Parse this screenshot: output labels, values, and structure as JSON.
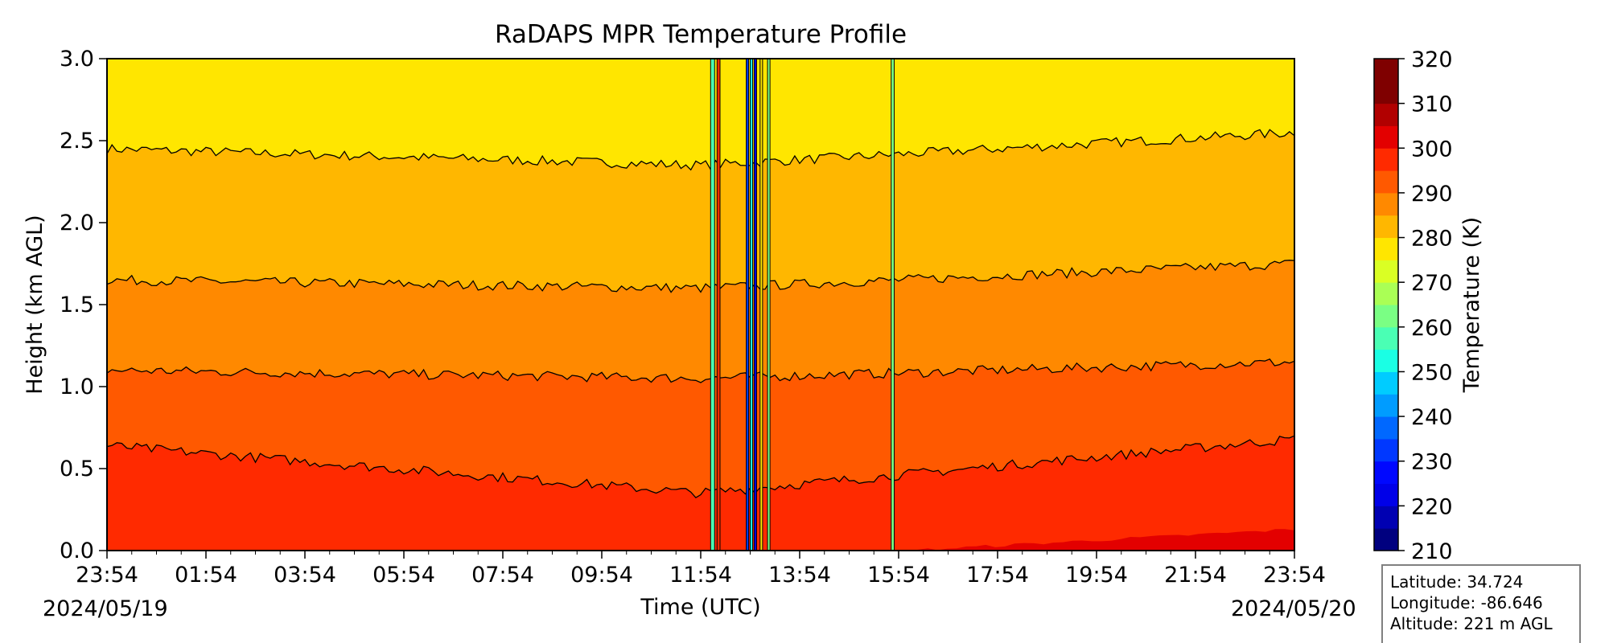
{
  "chart_data": {
    "type": "heatmap",
    "title": "RaDAPS MPR Temperature Profile",
    "xlabel": "Time (UTC)",
    "ylabel": "Height (km AGL)",
    "x_ticks": [
      "23:54",
      "01:54",
      "03:54",
      "05:54",
      "07:54",
      "09:54",
      "11:54",
      "13:54",
      "15:54",
      "17:54",
      "19:54",
      "21:54",
      "23:54"
    ],
    "x_range_hours": [
      0,
      24
    ],
    "y_ticks": [
      "0.0",
      "0.5",
      "1.0",
      "1.5",
      "2.0",
      "2.5",
      "3.0"
    ],
    "ylim": [
      0,
      3
    ],
    "start_date": "2024/05/19",
    "end_date": "2024/05/20",
    "colorbar": {
      "label": "Temperature (K)",
      "range": [
        210,
        320
      ],
      "step": 5,
      "tick_labels": [
        "320",
        "310",
        "300",
        "290",
        "280",
        "270",
        "260",
        "250",
        "240",
        "230",
        "220",
        "210"
      ],
      "colors": [
        "#00007f",
        "#0000b2",
        "#0000e8",
        "#0008ff",
        "#0038ff",
        "#0068ff",
        "#009cff",
        "#00ccff",
        "#1affe4",
        "#4affb4",
        "#7aff84",
        "#aaff55",
        "#daff24",
        "#ffe600",
        "#ffb700",
        "#ff8900",
        "#ff5900",
        "#ff2a00",
        "#e30000",
        "#b10000",
        "#7f0000",
        "#7f0000"
      ]
    },
    "contour_levels_km": {
      "300": {
        "start": 0.12,
        "end": 0.13
      },
      "295": {
        "start": 0.64,
        "mid": 0.35,
        "end": 0.68
      },
      "290": {
        "start": 1.1,
        "mid": 1.05,
        "end": 1.15
      },
      "285": {
        "start": 1.65,
        "mid": 1.6,
        "end": 1.75
      },
      "280": {
        "start": 2.45,
        "mid": 2.35,
        "end": 2.55
      }
    },
    "grid": false,
    "station": {
      "latitude": "Latitude: 34.724",
      "longitude": "Longitude: -86.646",
      "altitude": "Altitude: 221 m AGL"
    }
  }
}
